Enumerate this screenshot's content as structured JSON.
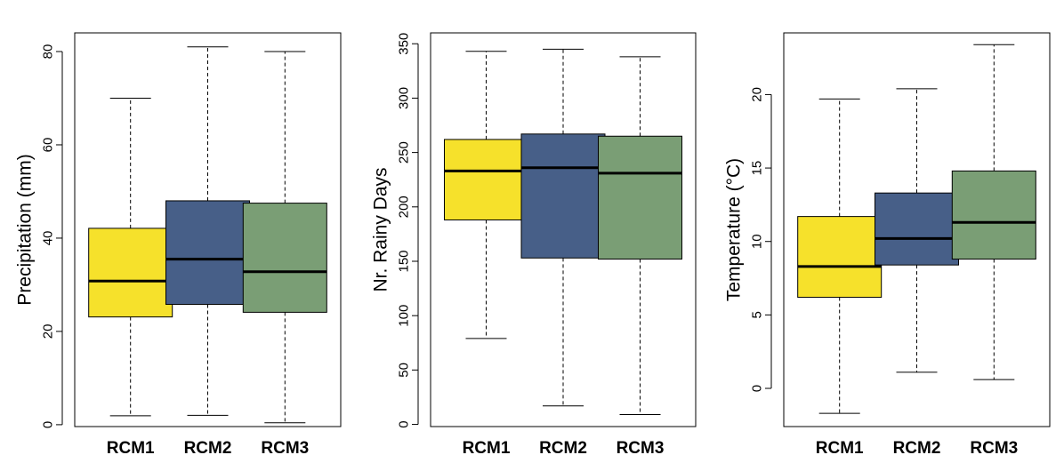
{
  "colors": {
    "RCM1": "#f6e12b",
    "RCM2": "#475f88",
    "RCM3": "#7a9e75",
    "median": "#000000",
    "axis": "#000000"
  },
  "chart_data": [
    {
      "type": "boxplot",
      "ylabel": "Precipitation (mm)",
      "categories": [
        "RCM1",
        "RCM2",
        "RCM3"
      ],
      "ylim": [
        -0.4,
        84
      ],
      "yticks": [
        0,
        20,
        40,
        60,
        80
      ],
      "ytick_labels": [
        "0",
        "20",
        "40",
        "60",
        "80"
      ],
      "boxes": [
        {
          "name": "RCM1",
          "min": 1.9,
          "q1": 23.1,
          "median": 30.8,
          "q3": 42.1,
          "max": 70.0
        },
        {
          "name": "RCM2",
          "min": 2.0,
          "q1": 25.8,
          "median": 35.5,
          "q3": 48.0,
          "max": 81.0
        },
        {
          "name": "RCM3",
          "min": 0.4,
          "q1": 24.1,
          "median": 32.8,
          "q3": 47.5,
          "max": 80.0
        }
      ]
    },
    {
      "type": "boxplot",
      "ylabel": "Nr. Rainy Days",
      "categories": [
        "RCM1",
        "RCM2",
        "RCM3"
      ],
      "ylim": [
        -2,
        360
      ],
      "yticks": [
        0,
        50,
        100,
        150,
        200,
        250,
        300,
        350
      ],
      "ytick_labels": [
        "0",
        "50",
        "100",
        "150",
        "200",
        "250",
        "300",
        "350"
      ],
      "boxes": [
        {
          "name": "RCM1",
          "min": 79,
          "q1": 188,
          "median": 233,
          "q3": 262,
          "max": 343
        },
        {
          "name": "RCM2",
          "min": 17,
          "q1": 153,
          "median": 236,
          "q3": 267,
          "max": 345
        },
        {
          "name": "RCM3",
          "min": 9,
          "q1": 152,
          "median": 231,
          "q3": 265,
          "max": 338
        }
      ]
    },
    {
      "type": "boxplot",
      "ylabel": "Temperature (°C)",
      "categories": [
        "RCM1",
        "RCM2",
        "RCM3"
      ],
      "ylim": [
        -2.6,
        24.2
      ],
      "yticks": [
        0,
        5,
        10,
        15,
        20
      ],
      "ytick_labels": [
        "0",
        "5",
        "10",
        "15",
        "20"
      ],
      "boxes": [
        {
          "name": "RCM1",
          "min": -1.7,
          "q1": 6.2,
          "median": 8.3,
          "q3": 11.7,
          "max": 19.7
        },
        {
          "name": "RCM2",
          "min": 1.1,
          "q1": 8.4,
          "median": 10.2,
          "q3": 13.3,
          "max": 20.4
        },
        {
          "name": "RCM3",
          "min": 0.6,
          "q1": 8.8,
          "median": 11.3,
          "q3": 14.8,
          "max": 23.4
        }
      ]
    }
  ]
}
